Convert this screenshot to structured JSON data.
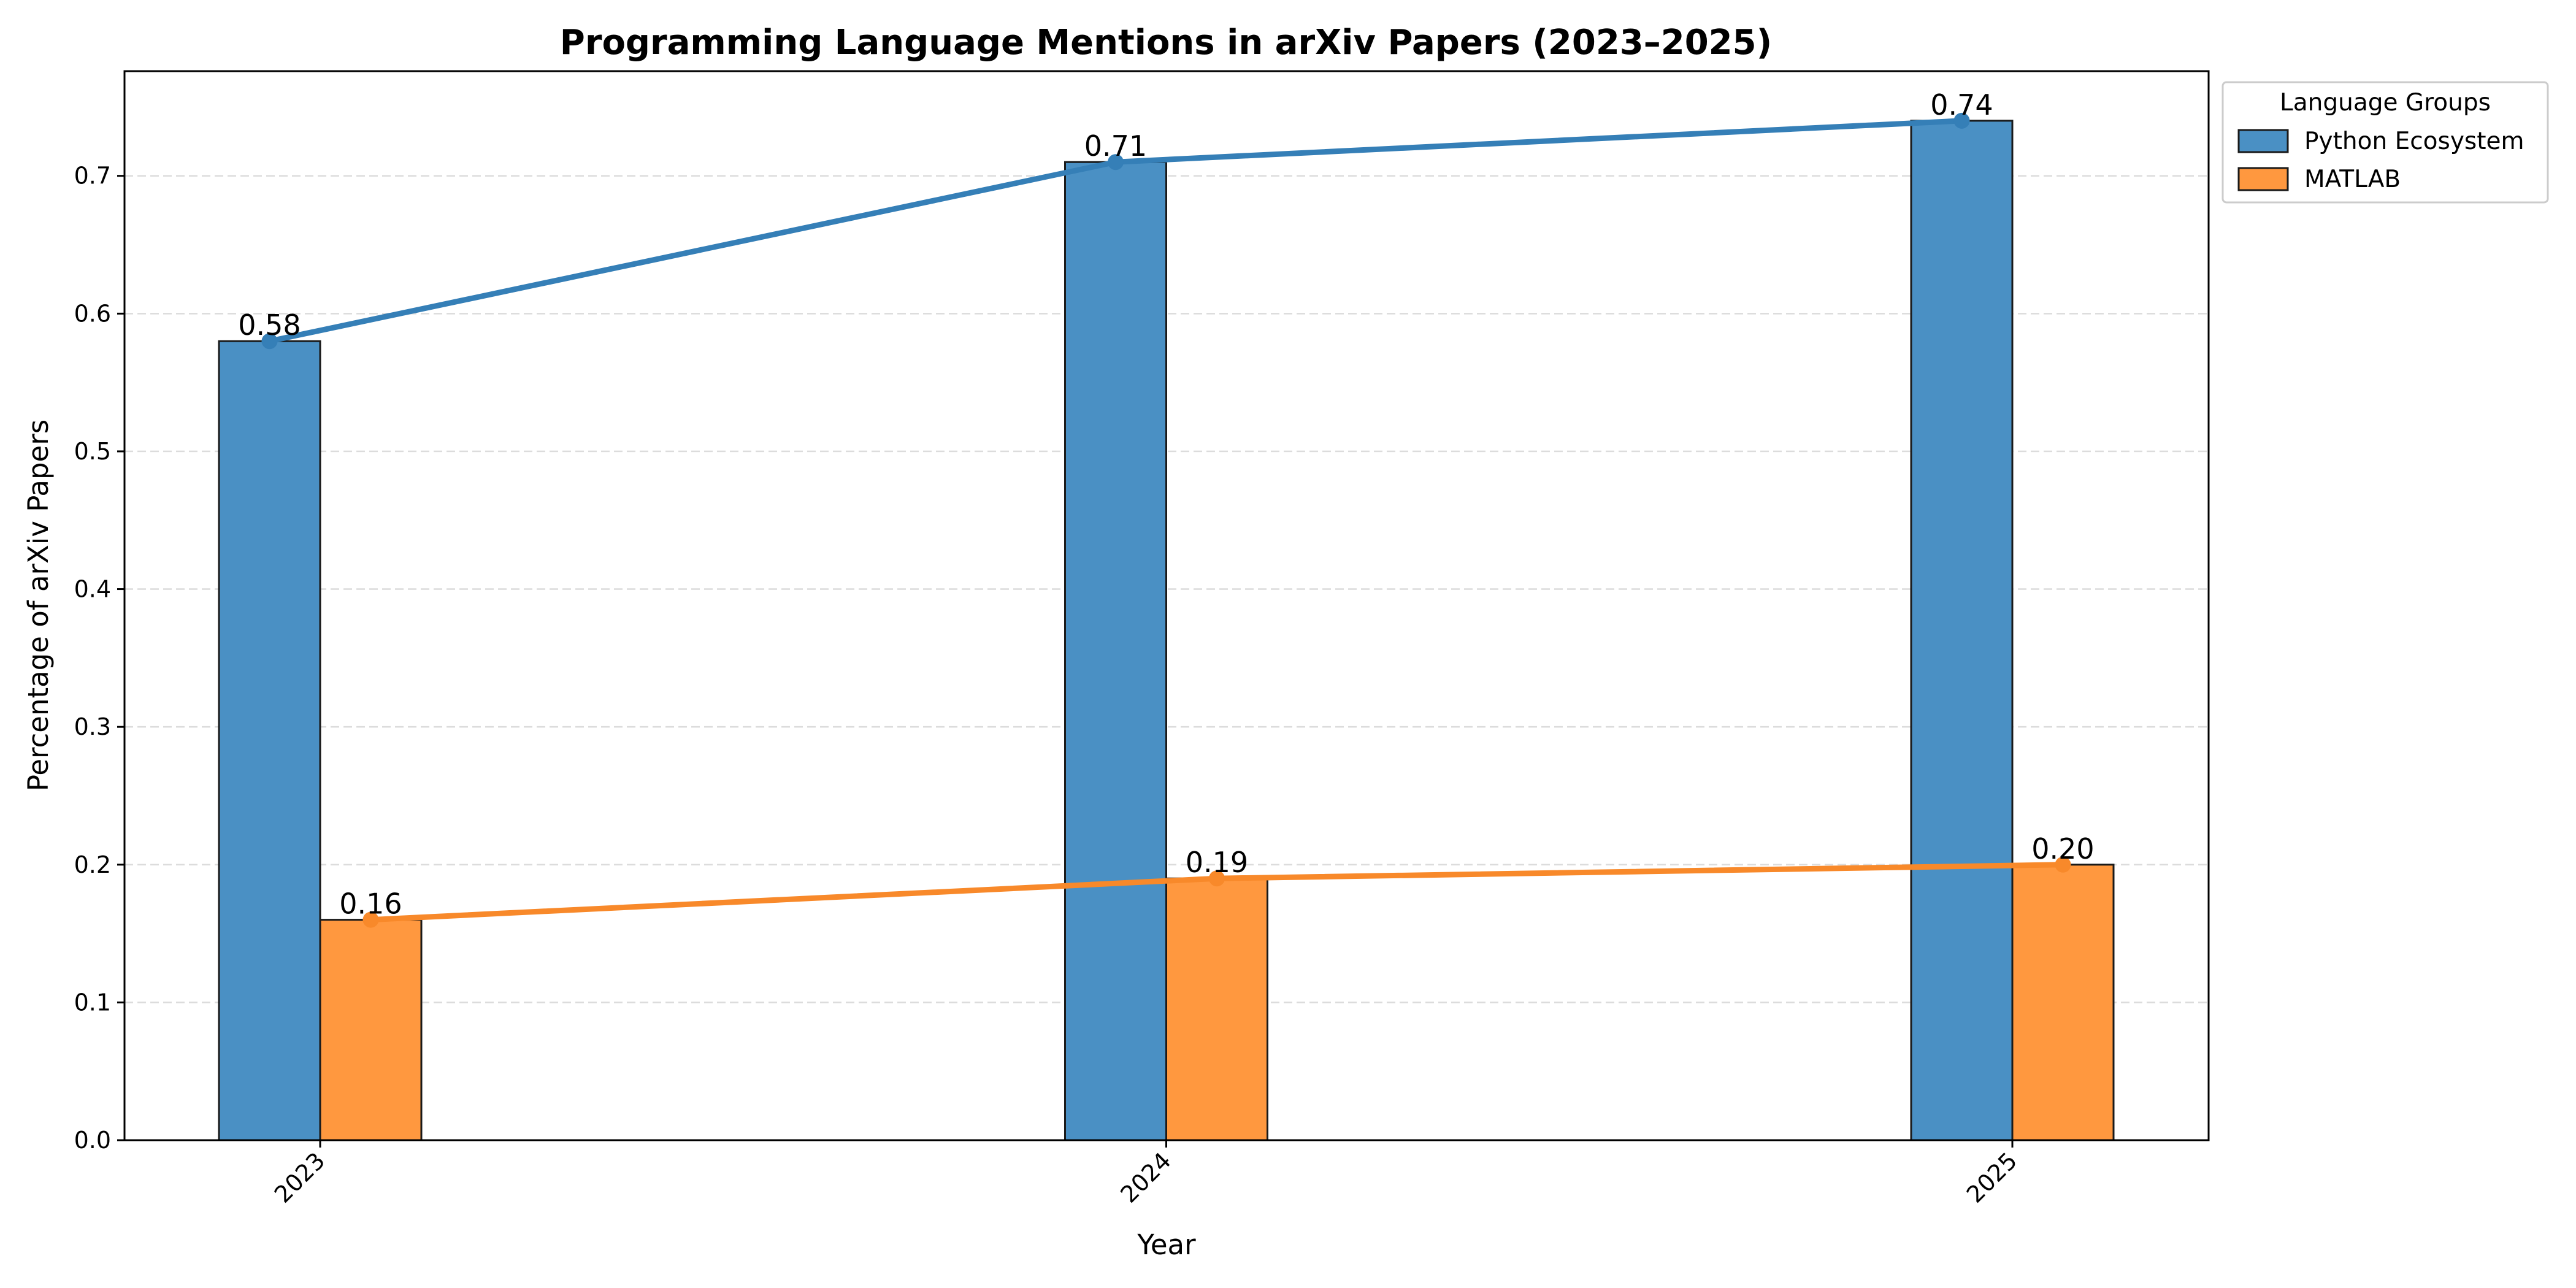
{
  "chart_data": {
    "type": "bar",
    "title": "Programming Language Mentions in arXiv Papers (2023–2025)",
    "xlabel": "Year",
    "ylabel": "Percentage of arXiv Papers",
    "categories": [
      "2023",
      "2024",
      "2025"
    ],
    "ylim": [
      0,
      0.776
    ],
    "yticks": [
      0.0,
      0.1,
      0.2,
      0.3,
      0.4,
      0.5,
      0.6,
      0.7
    ],
    "ytick_labels": [
      "0.0",
      "0.1",
      "0.2",
      "0.3",
      "0.4",
      "0.5",
      "0.6",
      "0.7"
    ],
    "grid": "horizontal dashed",
    "legend": {
      "title": "Language Groups",
      "placement": "outside-top-right"
    },
    "overlay": "line with markers connecting bar tops per series",
    "series": [
      {
        "name": "Python Ecosystem",
        "values": [
          0.58,
          0.71,
          0.74
        ],
        "labels": [
          "0.58",
          "0.71",
          "0.74"
        ],
        "bar_color": "#4a90c4",
        "line_color": "#357fb7"
      },
      {
        "name": "MATLAB",
        "values": [
          0.16,
          0.19,
          0.2
        ],
        "labels": [
          "0.16",
          "0.19",
          "0.20"
        ],
        "bar_color": "#ff983f",
        "line_color": "#f8892a"
      }
    ]
  }
}
